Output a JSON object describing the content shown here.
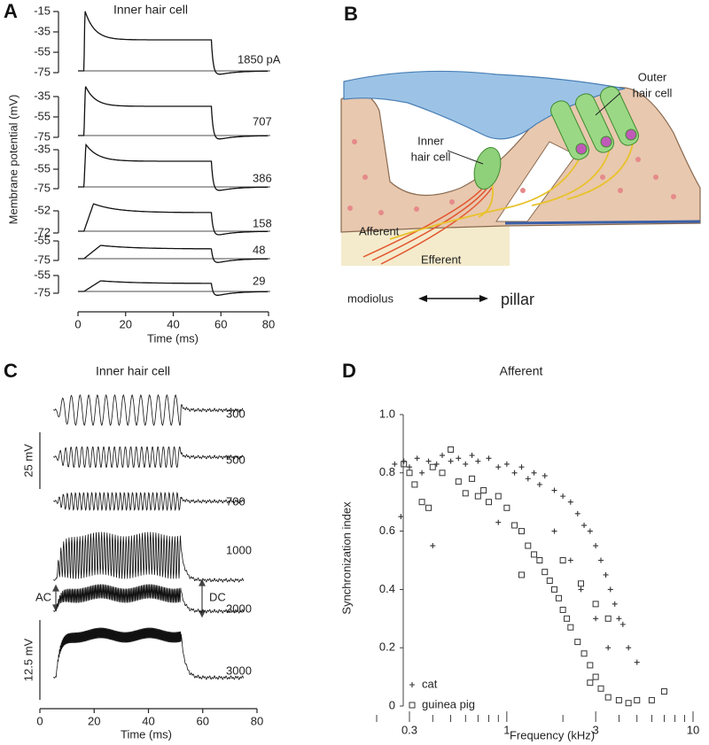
{
  "panel_a": {
    "label": "A",
    "title": "Inner hair cell",
    "ylabel": "Membrane potential (mV)",
    "xlabel": "Time (ms)",
    "xlim": [
      0,
      80
    ],
    "xticks": [
      0,
      20,
      40,
      60,
      80
    ],
    "traces": [
      {
        "name": "1850 pA",
        "yticks": [
          -15,
          -35,
          -55,
          -75
        ]
      },
      {
        "name": "707",
        "yticks": [
          -35,
          -55,
          -75
        ]
      },
      {
        "name": "386",
        "yticks": [
          -35,
          -55,
          -75
        ]
      },
      {
        "name": "158",
        "yticks": [
          -52,
          -72
        ]
      },
      {
        "name": "48",
        "yticks": [
          -55,
          -75
        ]
      },
      {
        "name": "29",
        "yticks": [
          -55,
          -75
        ]
      }
    ]
  },
  "panel_b": {
    "label": "B",
    "outer_hair_cell": [
      "Outer",
      "hair cell"
    ],
    "inner_hair_cell": [
      "Inner",
      "hair cell"
    ],
    "afferent": "Afferent",
    "efferent": "Efferent",
    "modiolus": "modiolus",
    "pillar": "pillar"
  },
  "panel_c": {
    "label": "C",
    "title": "Inner hair cell",
    "xlabel": "Time (ms)",
    "xlim": [
      0,
      80
    ],
    "xticks": [
      0,
      20,
      40,
      60,
      80
    ],
    "traces": [
      300,
      500,
      700,
      1000,
      2000,
      3000
    ],
    "scale_bars": [
      "25 mV",
      "12.5 mV"
    ],
    "ac": "AC",
    "dc": "DC"
  },
  "panel_d": {
    "label": "D",
    "type": "scatter",
    "title": "Afferent",
    "ylabel": "Synchronization index",
    "xlabel": "Frequency (kHz)",
    "log_x": true,
    "xlim": [
      0.2,
      11
    ],
    "ylim": [
      0,
      1
    ],
    "xticks": [
      0.3,
      1,
      3,
      10
    ],
    "xminor_ticks": [
      0.2,
      0.4,
      0.5,
      0.6,
      0.7,
      0.8,
      0.9,
      2,
      4,
      5,
      6,
      7,
      8,
      9
    ],
    "yticks": [
      0,
      0.2,
      0.4,
      0.6,
      0.8,
      {
        "value": 1,
        "label": "1.0"
      }
    ],
    "series": [
      {
        "name": "cat",
        "color": "#333333",
        "marker": "plus",
        "x": [
          0.25,
          0.28,
          0.3,
          0.33,
          0.35,
          0.38,
          0.4,
          0.42,
          0.45,
          0.5,
          0.55,
          0.6,
          0.65,
          0.7,
          0.8,
          0.9,
          1.0,
          1.1,
          1.2,
          1.3,
          1.4,
          1.5,
          1.6,
          1.8,
          2.0,
          2.2,
          2.4,
          2.6,
          2.8,
          3.0,
          3.2,
          3.4,
          3.6,
          3.8,
          4.0,
          4.2,
          4.5,
          5.0,
          2.5,
          3.0,
          1.8,
          0.27,
          0.9,
          2.2,
          3.5
        ],
        "values": [
          0.83,
          0.84,
          0.82,
          0.85,
          0.8,
          0.84,
          0.55,
          0.83,
          0.86,
          0.84,
          0.85,
          0.83,
          0.86,
          0.84,
          0.85,
          0.82,
          0.83,
          0.8,
          0.82,
          0.78,
          0.8,
          0.76,
          0.79,
          0.74,
          0.72,
          0.7,
          0.66,
          0.62,
          0.6,
          0.55,
          0.5,
          0.45,
          0.4,
          0.35,
          0.3,
          0.28,
          0.2,
          0.15,
          0.4,
          0.3,
          0.6,
          0.65,
          0.63,
          0.5,
          0.2
        ]
      },
      {
        "name": "guinea pig",
        "color": "#333333",
        "marker": "square",
        "x": [
          0.28,
          0.3,
          0.32,
          0.35,
          0.38,
          0.4,
          0.45,
          0.5,
          0.55,
          0.6,
          0.65,
          0.7,
          0.75,
          0.8,
          0.9,
          1.0,
          1.1,
          1.2,
          1.3,
          1.4,
          1.5,
          1.6,
          1.7,
          1.8,
          1.9,
          2.0,
          2.1,
          2.2,
          2.4,
          2.6,
          2.8,
          3.0,
          3.2,
          3.5,
          4.0,
          4.5,
          5.0,
          6.0,
          7.0,
          2.5,
          3.0,
          2.0,
          1.2,
          2.8,
          3.5
        ],
        "values": [
          0.83,
          0.8,
          0.76,
          0.7,
          0.68,
          0.82,
          0.8,
          0.88,
          0.77,
          0.73,
          0.78,
          0.72,
          0.74,
          0.7,
          0.72,
          0.68,
          0.62,
          0.6,
          0.55,
          0.52,
          0.5,
          0.46,
          0.43,
          0.4,
          0.37,
          0.33,
          0.3,
          0.27,
          0.22,
          0.18,
          0.14,
          0.1,
          0.06,
          0.03,
          0.02,
          0.01,
          0.02,
          0.02,
          0.05,
          0.42,
          0.35,
          0.5,
          0.45,
          0.08,
          0.3
        ]
      }
    ]
  }
}
